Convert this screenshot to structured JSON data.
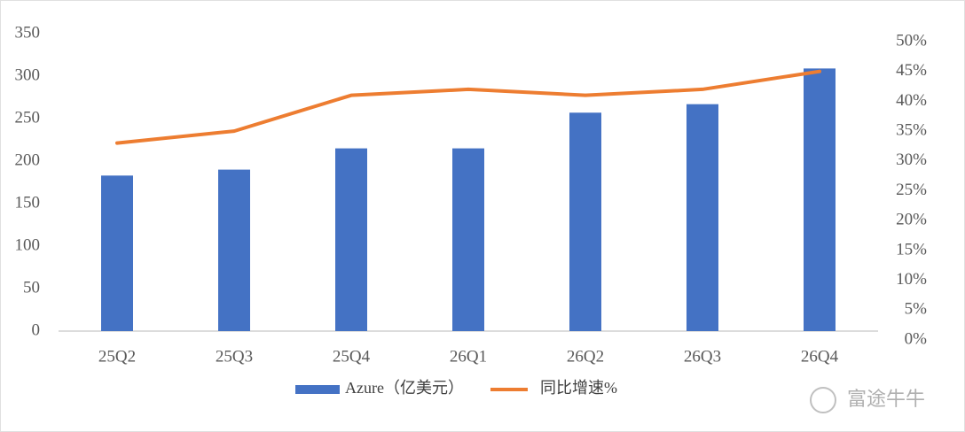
{
  "chart_data": {
    "type": "bar_line",
    "categories": [
      "25Q2",
      "25Q3",
      "25Q4",
      "26Q1",
      "26Q2",
      "26Q3",
      "26Q4"
    ],
    "series": [
      {
        "name": "Azure（亿美元）",
        "color": "#4472c4",
        "type": "bar",
        "values": [
          183,
          190,
          215,
          215,
          257,
          267,
          309
        ]
      },
      {
        "name": "同比增速%",
        "color": "#ed7d31",
        "type": "line",
        "axis": "y2",
        "values": [
          33,
          35,
          41,
          42,
          41,
          42,
          45
        ]
      }
    ],
    "ylim": [
      0,
      350
    ],
    "yticks": [
      0,
      50,
      100,
      150,
      200,
      250,
      300,
      350
    ],
    "y2lim": [
      0,
      50
    ],
    "y2ticks": [
      {
        "value": 0,
        "label": "0%"
      },
      {
        "value": 5,
        "label": "5%"
      },
      {
        "value": 10,
        "label": "10%"
      },
      {
        "value": 15,
        "label": "15%"
      },
      {
        "value": 20,
        "label": "20%"
      },
      {
        "value": 25,
        "label": "25%"
      },
      {
        "value": 30,
        "label": "30%"
      },
      {
        "value": 35,
        "label": "35%"
      },
      {
        "value": 40,
        "label": "40%"
      },
      {
        "value": 45,
        "label": "45%"
      },
      {
        "value": 50,
        "label": "50%"
      }
    ],
    "legend": "bottom",
    "watermark": "富途牛牛"
  }
}
